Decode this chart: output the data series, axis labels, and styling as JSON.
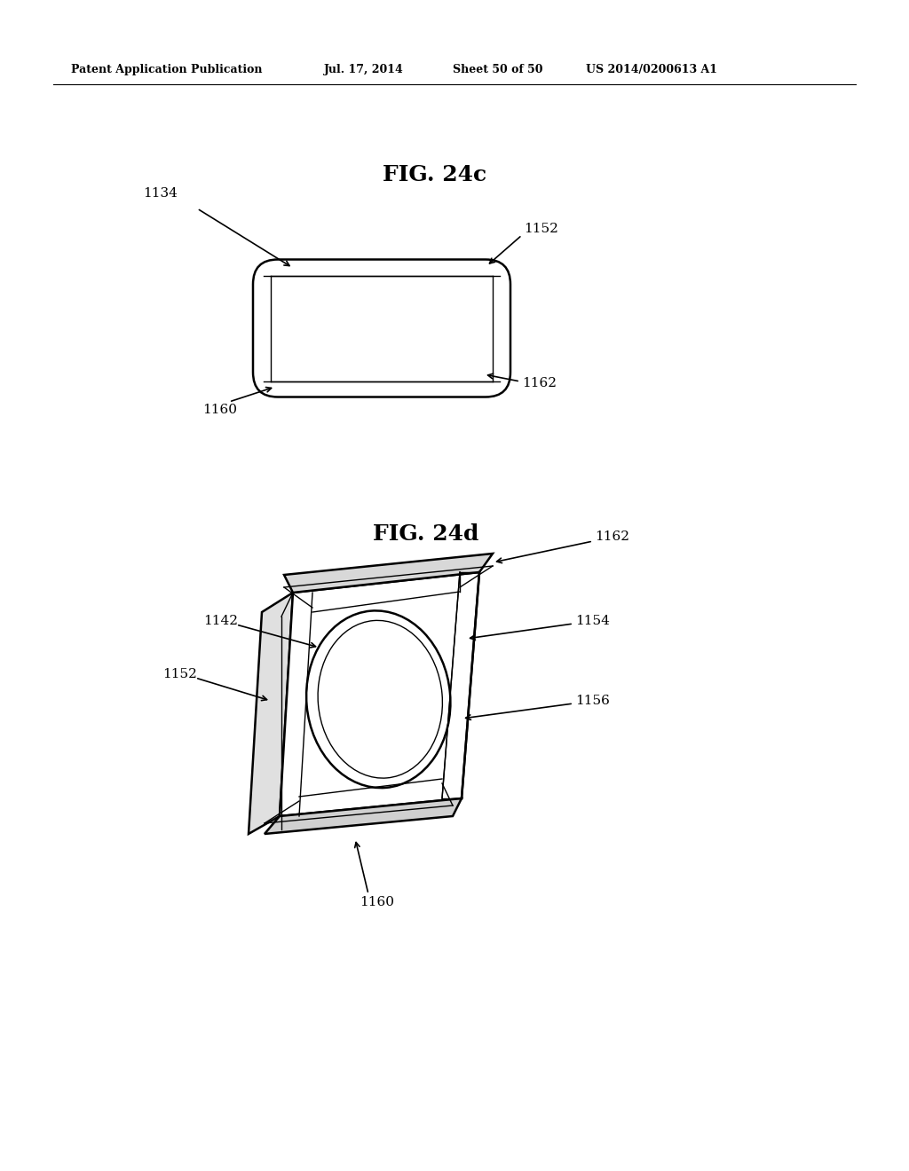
{
  "bg_color": "#ffffff",
  "header_text": "Patent Application Publication",
  "header_date": "Jul. 17, 2014",
  "header_sheet": "Sheet 50 of 50",
  "header_patent": "US 2014/0200613 A1",
  "fig24c_title": "FIG. 24c",
  "fig24d_title": "FIG. 24d",
  "line_color": "#000000",
  "lw_main": 1.8,
  "lw_thin": 1.0,
  "label_fontsize": 11,
  "title_fontsize": 18,
  "header_fontsize": 9
}
